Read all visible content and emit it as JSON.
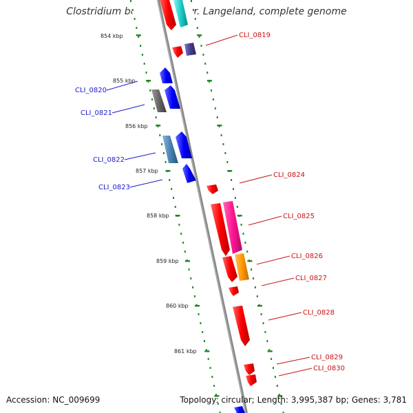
{
  "title": "Clostridium botulinum F str. Langeland, complete genome",
  "footer": {
    "accession": "Accession: NC_009699",
    "stats": "Topology: circular; Length: 3,995,387 bp; Genes: 3,781"
  },
  "colors": {
    "backbone": "#888888",
    "tick": "#228822",
    "forward_label": "#1a1acc",
    "reverse_label": "#cc1111"
  },
  "kbp_labels": [
    "854 kbp",
    "855 kbp",
    "856 kbp",
    "857 kbp",
    "858 kbp",
    "859 kbp",
    "860 kbp",
    "861 kbp"
  ],
  "gene_labels": [
    {
      "text": "CLI_0819",
      "strand": "reverse"
    },
    {
      "text": "CLI_0820",
      "strand": "forward"
    },
    {
      "text": "CLI_0821",
      "strand": "forward"
    },
    {
      "text": "CLI_0822",
      "strand": "forward"
    },
    {
      "text": "CLI_0823",
      "strand": "forward"
    },
    {
      "text": "CLI_0824",
      "strand": "reverse"
    },
    {
      "text": "CLI_0825",
      "strand": "reverse"
    },
    {
      "text": "CLI_0826",
      "strand": "reverse"
    },
    {
      "text": "CLI_0827",
      "strand": "reverse"
    },
    {
      "text": "CLI_0828",
      "strand": "reverse"
    },
    {
      "text": "CLI_0829",
      "strand": "reverse"
    },
    {
      "text": "CLI_0830",
      "strand": "reverse"
    }
  ]
}
